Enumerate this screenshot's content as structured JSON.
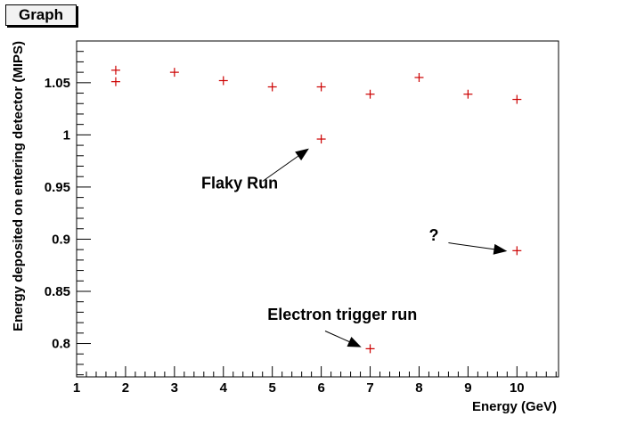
{
  "chart_data": {
    "type": "scatter",
    "title": "Graph",
    "xlabel": "Energy (GeV)",
    "ylabel": "Energy deposited on entering detector (MIPS)",
    "xlim": [
      1,
      10.85
    ],
    "ylim": [
      0.768,
      1.09
    ],
    "x_ticks": [
      "1",
      "2",
      "3",
      "4",
      "5",
      "6",
      "7",
      "8",
      "9",
      "10"
    ],
    "y_ticks": [
      "0.8",
      "0.85",
      "0.9",
      "0.95",
      "1",
      "1.05"
    ],
    "y_tick_values": [
      0.8,
      0.85,
      0.9,
      0.95,
      1.0,
      1.05
    ],
    "marker": "plus",
    "marker_color": "#cc0000",
    "grid": false,
    "series": [
      {
        "x": [
          1.8,
          1.8,
          3,
          4,
          5,
          6,
          6,
          7,
          7,
          8,
          9,
          10,
          10
        ],
        "y": [
          1.062,
          1.051,
          1.06,
          1.052,
          1.046,
          1.046,
          0.996,
          1.039,
          0.795,
          1.055,
          1.039,
          1.034,
          0.889
        ]
      }
    ],
    "annotations": [
      {
        "text": "Flaky Run",
        "label_at": [
          3.55,
          0.9485
        ],
        "arrow_from": [
          4.8,
          0.9555
        ],
        "arrow_to": [
          5.75,
          0.987
        ]
      },
      {
        "text": "?",
        "label_at": [
          8.2,
          0.8985
        ],
        "arrow_from": [
          8.6,
          0.8965
        ],
        "arrow_to": [
          9.8,
          0.8885
        ]
      },
      {
        "text": "Electron trigger run",
        "label_at": [
          4.9,
          0.8225
        ],
        "arrow_from": [
          6.08,
          0.812
        ],
        "arrow_to": [
          6.82,
          0.7965
        ]
      }
    ]
  }
}
